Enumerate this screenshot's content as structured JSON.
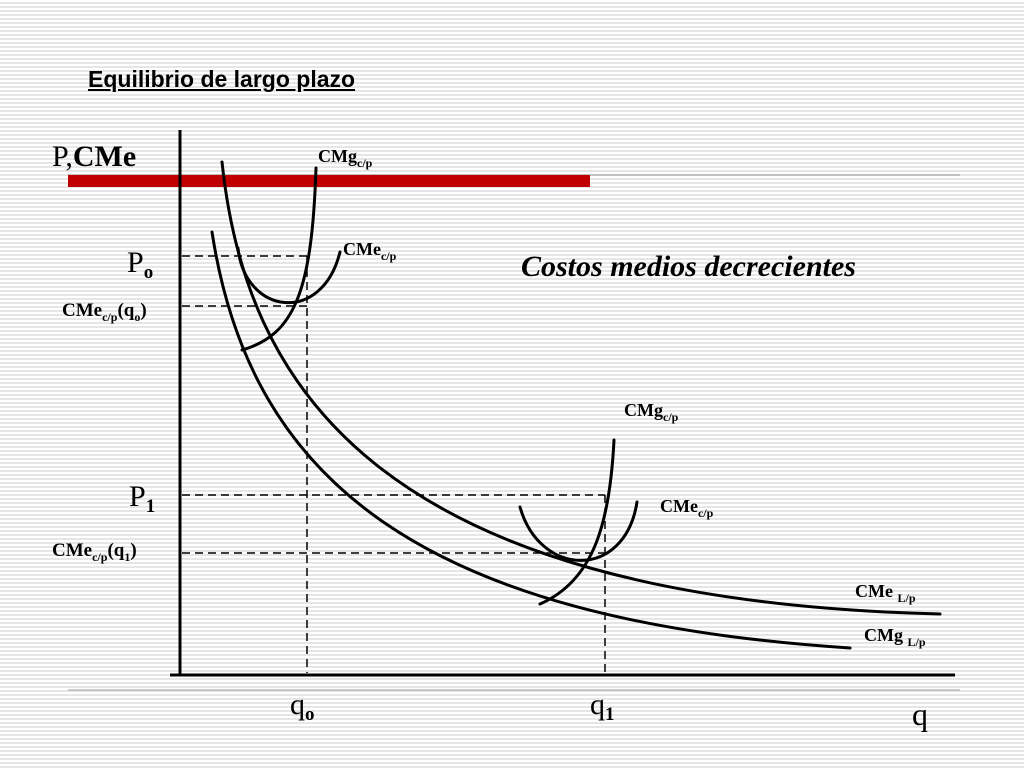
{
  "slide": {
    "title": "Equilibrio de largo plazo"
  },
  "colors": {
    "accent_bar": "#c00000",
    "curve": "#000000"
  },
  "diagram": {
    "y_axis_label_p": "P",
    "y_axis_label_comma": ",",
    "y_axis_label_cme": "CMe",
    "x_axis_label": "q",
    "subtitle": "Costos medios decrecientes",
    "price_labels": {
      "p0_main": "P",
      "p0_sub": "o",
      "p1_main": "P",
      "p1_sub": "1"
    },
    "cost_labels": {
      "cme_q0_main": "CMe",
      "cme_q0_sub": "c/p",
      "cme_q0_arg": "(q",
      "cme_q0_arg_sub": "o",
      "cme_q0_close": ")",
      "cme_q1_main": "CMe",
      "cme_q1_sub": "c/p",
      "cme_q1_arg": "(q",
      "cme_q1_arg_sub": "1",
      "cme_q1_close": ")"
    },
    "quantity_labels": {
      "q0_main": "q",
      "q0_sub": "o",
      "q1_main": "q",
      "q1_sub": "1"
    },
    "curve_labels": {
      "cmg_cp_top_main": "CMg",
      "cmg_cp_top_sub": "c/p",
      "cme_cp_top_main": "CMe",
      "cme_cp_top_sub": "c/p",
      "cmg_cp_bottom_main": "CMg",
      "cmg_cp_bottom_sub": "c/p",
      "cme_cp_bottom_main": "CMe",
      "cme_cp_bottom_sub": "c/p",
      "cme_lp_main": "CMe ",
      "cme_lp_sub": "L/p",
      "cmg_lp_main": "CMg ",
      "cmg_lp_sub": "L/p"
    }
  }
}
